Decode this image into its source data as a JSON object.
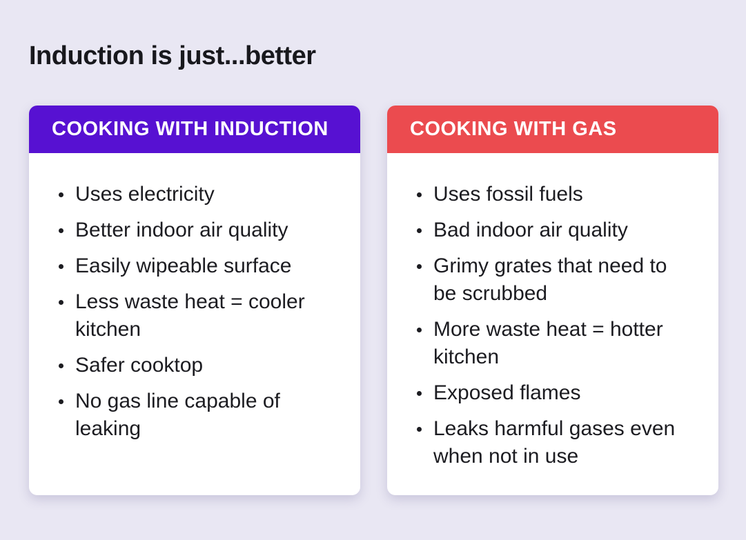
{
  "page": {
    "title": "Induction is just...better",
    "background_color": "#E9E7F3",
    "text_color": "#1C1C21"
  },
  "cards": [
    {
      "header": "COOKING WITH INDUCTION",
      "header_color": "#5711D2",
      "items": [
        "Uses electricity",
        "Better indoor air quality",
        "Easily wipeable surface",
        "Less waste heat = cooler\nkitchen",
        "Safer cooktop",
        "No gas line capable of\nleaking"
      ]
    },
    {
      "header": "COOKING WITH GAS",
      "header_color": "#EB4B4F",
      "items": [
        "Uses fossil fuels",
        "Bad indoor air quality",
        "Grimy grates that need to\nbe scrubbed",
        "More waste heat = hotter\nkitchen",
        "Exposed flames",
        "Leaks harmful gases even\nwhen not in use"
      ]
    }
  ]
}
